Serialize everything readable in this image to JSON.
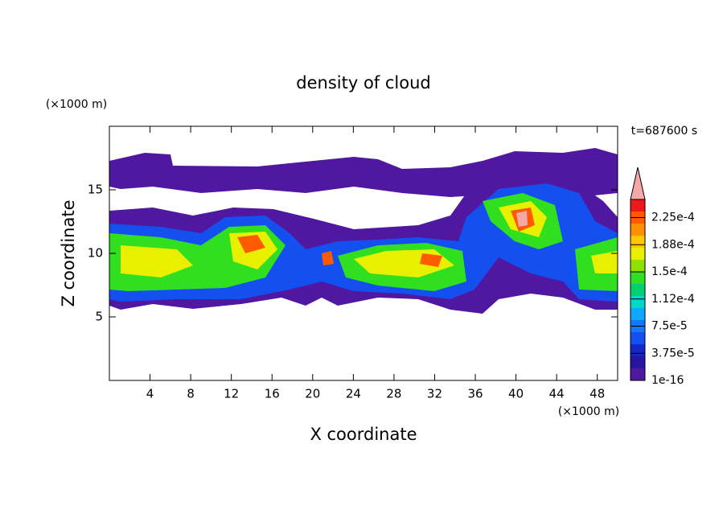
{
  "chart_data": {
    "type": "contour",
    "title": "density of cloud",
    "x_label": "X coordinate",
    "y_label": "Z coordinate",
    "x_unit": "(×1000 m)",
    "y_unit": "(×1000 m)",
    "time_label": "t=687600 s",
    "xlim": [
      0,
      50
    ],
    "xticks": [
      4,
      8,
      12,
      16,
      20,
      24,
      28,
      32,
      36,
      40,
      44,
      48
    ],
    "ylim": [
      0,
      20
    ],
    "yticks": [
      5,
      10,
      15
    ],
    "colorbar": {
      "clim": [
        0,
        0.00025
      ],
      "ticks": [
        {
          "value": 1e-16,
          "label": "1e-16"
        },
        {
          "value": 3.75e-05,
          "label": "3.75e-5"
        },
        {
          "value": 7.5e-05,
          "label": "7.5e-5"
        },
        {
          "value": 0.0001125,
          "label": "1.12e-4"
        },
        {
          "value": 0.00015,
          "label": "1.5e-4"
        },
        {
          "value": 0.0001875,
          "label": "1.88e-4"
        },
        {
          "value": 0.000225,
          "label": "2.25e-4"
        }
      ],
      "colors": [
        "#5018a0",
        "#2814a0",
        "#1428c8",
        "#1450f0",
        "#1478ff",
        "#10a8ff",
        "#00d8c8",
        "#00d070",
        "#30e020",
        "#90e000",
        "#e8f000",
        "#ffc800",
        "#ff9000",
        "#ff5a00",
        "#f01818"
      ],
      "over_color": "#f4a8a8"
    }
  }
}
